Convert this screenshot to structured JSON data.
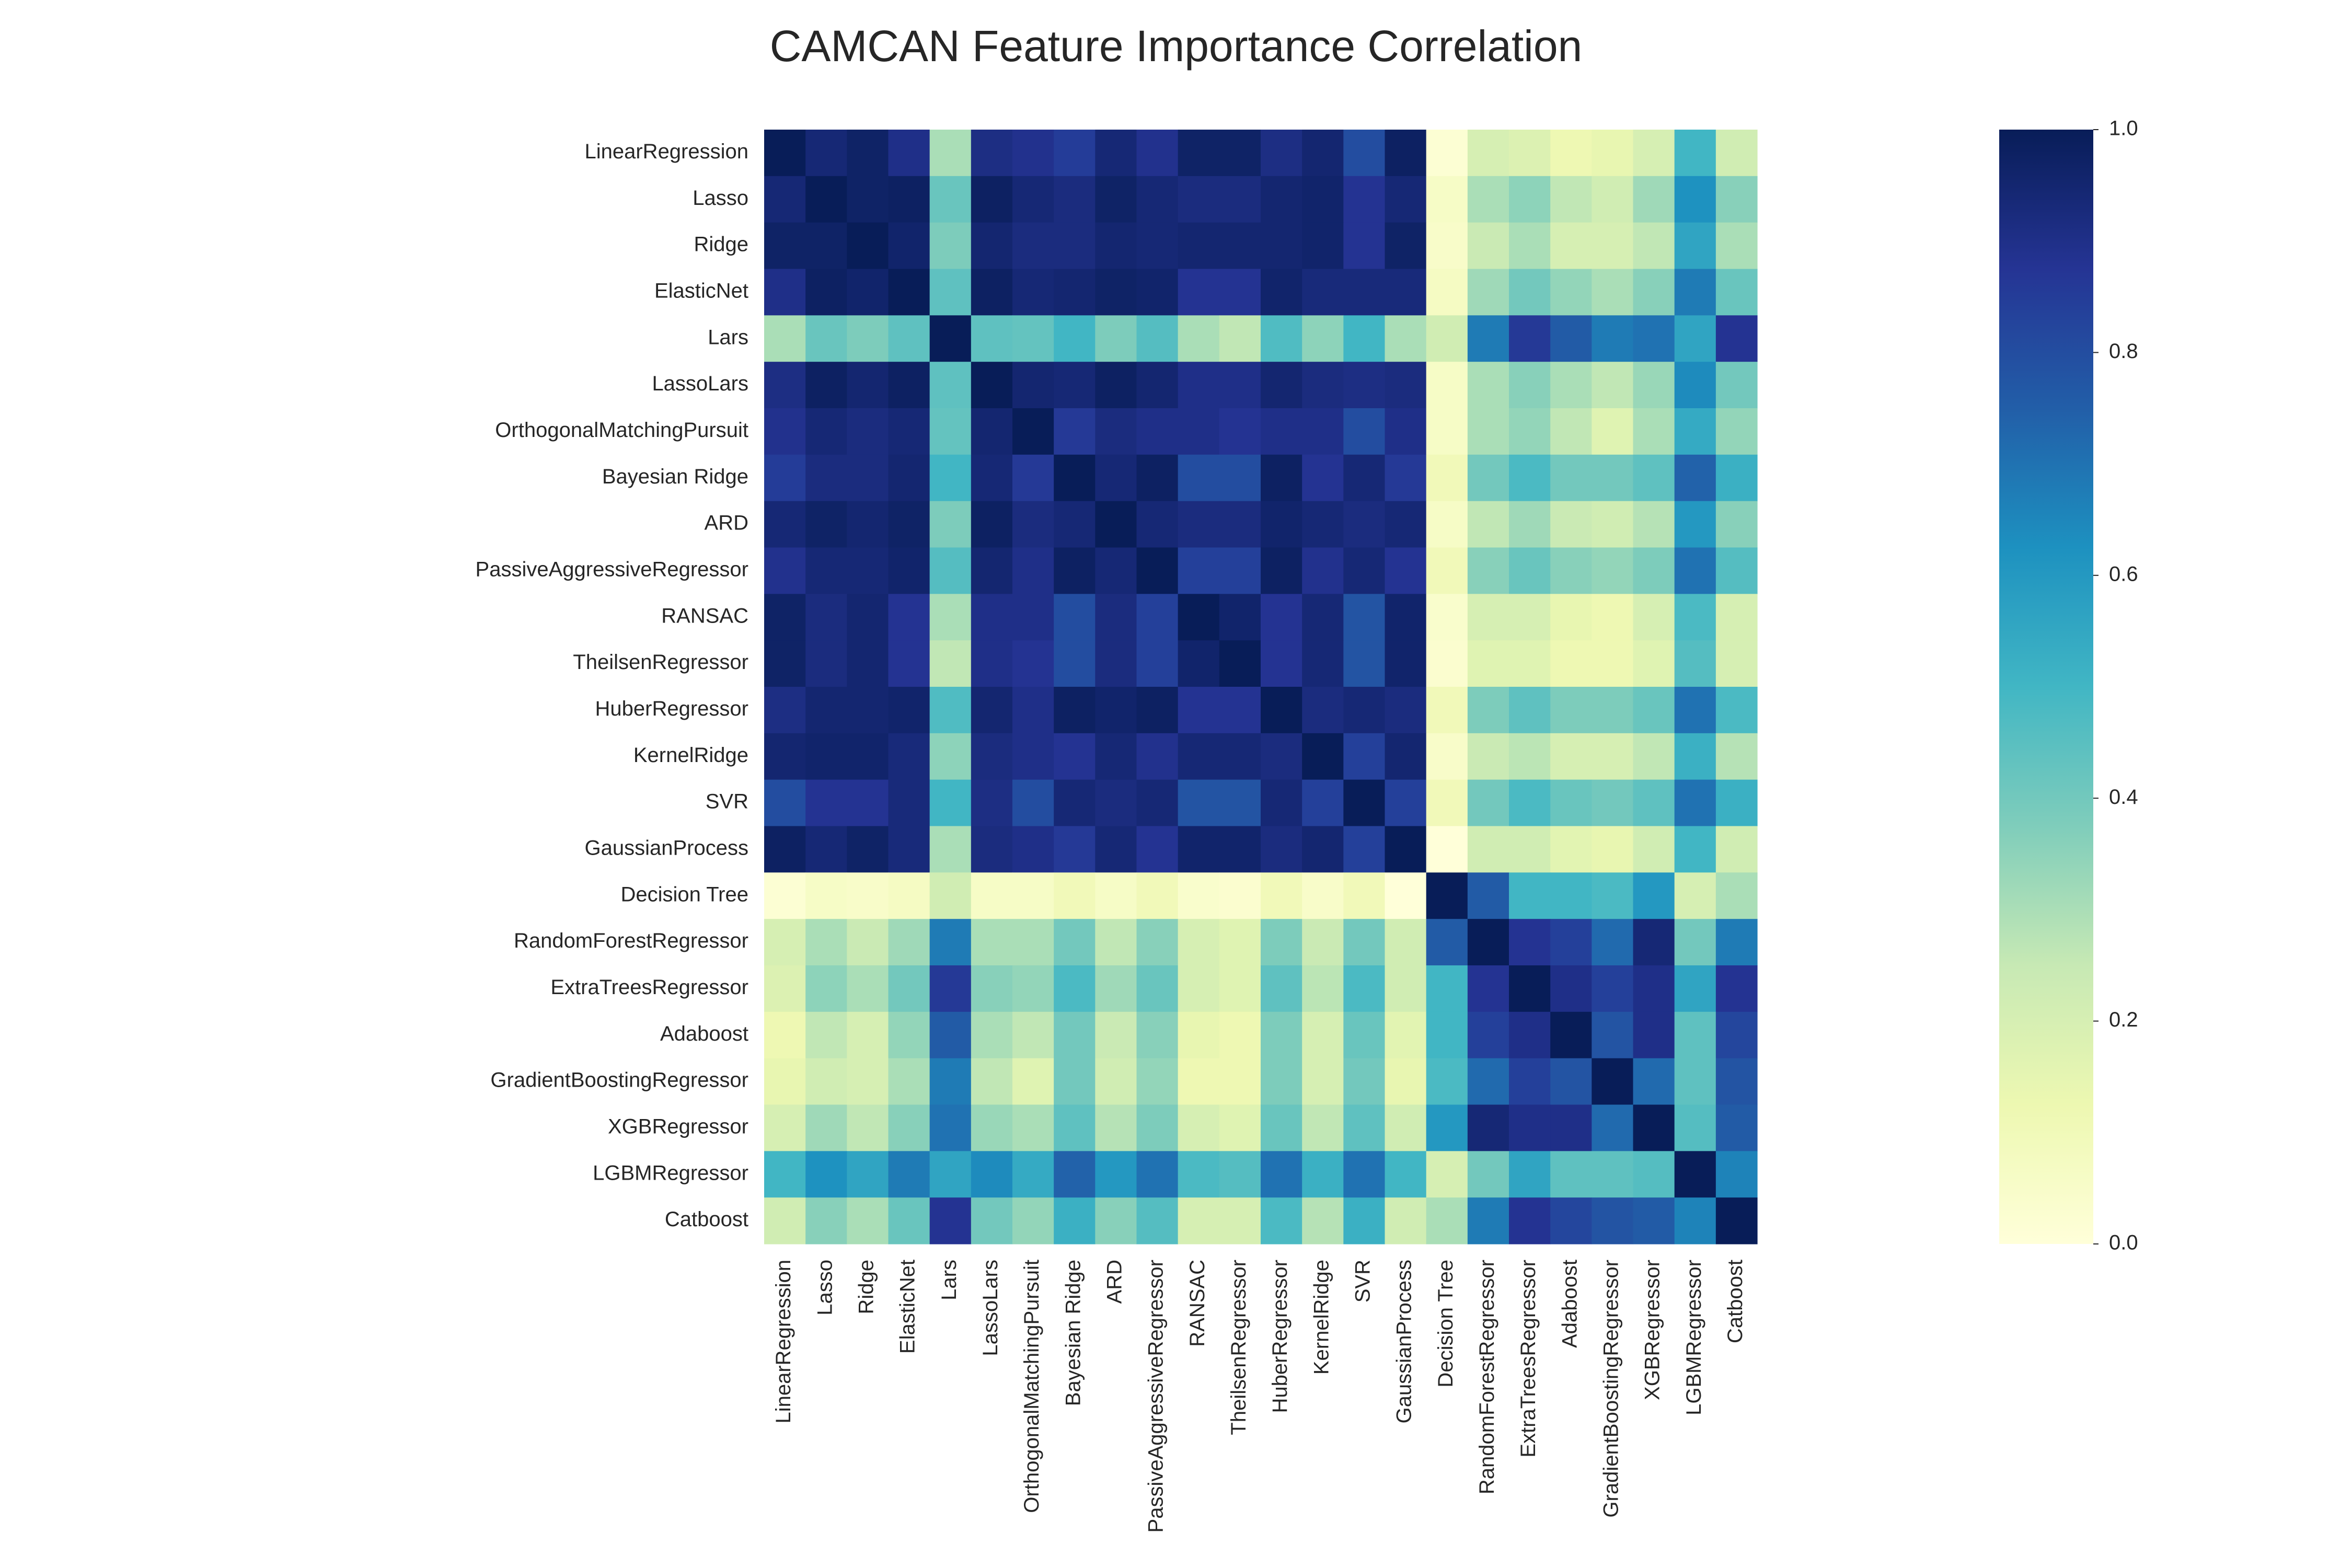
{
  "title": "CAMCAN Feature Importance Correlation",
  "colormap": {
    "name": "YlGnBu",
    "stops": [
      "#ffffd9",
      "#edf8b1",
      "#c7e9b4",
      "#7fcdbb",
      "#41b6c4",
      "#1d91c0",
      "#225ea8",
      "#253494",
      "#081d58"
    ]
  },
  "chart_data": {
    "type": "heatmap",
    "title": "CAMCAN Feature Importance Correlation",
    "labels": [
      "LinearRegression",
      "Lasso",
      "Ridge",
      "ElasticNet",
      "Lars",
      "LassoLars",
      "OrthogonalMatchingPursuit",
      "Bayesian Ridge",
      "ARD",
      "PassiveAggressiveRegressor",
      "RANSAC",
      "TheilsenRegressor",
      "HuberRegressor",
      "KernelRidge",
      "SVR",
      "GaussianProcess",
      "Decision Tree",
      "RandomForestRegressor",
      "ExtraTreesRegressor",
      "Adaboost",
      "GradientBoostingRegressor",
      "XGBRegressor",
      "LGBMRegressor",
      "Catboost"
    ],
    "vmin": 0.0,
    "vmax": 1.0,
    "colorbar_ticks": [
      "0.0",
      "0.2",
      "0.4",
      "0.6",
      "0.8",
      "1.0"
    ],
    "colorbar_tick_values": [
      0.0,
      0.2,
      0.4,
      0.6,
      0.8,
      1.0
    ],
    "values": [
      [
        1.0,
        0.94,
        0.97,
        0.9,
        0.3,
        0.91,
        0.89,
        0.85,
        0.94,
        0.89,
        0.97,
        0.97,
        0.91,
        0.95,
        0.8,
        0.98,
        0.02,
        0.2,
        0.18,
        0.12,
        0.14,
        0.2,
        0.5,
        0.22
      ],
      [
        0.94,
        1.0,
        0.97,
        0.98,
        0.42,
        0.98,
        0.94,
        0.92,
        0.97,
        0.94,
        0.92,
        0.92,
        0.95,
        0.96,
        0.88,
        0.94,
        0.06,
        0.3,
        0.35,
        0.26,
        0.22,
        0.32,
        0.62,
        0.36
      ],
      [
        0.97,
        0.97,
        1.0,
        0.96,
        0.38,
        0.95,
        0.92,
        0.92,
        0.95,
        0.94,
        0.95,
        0.95,
        0.95,
        0.96,
        0.88,
        0.97,
        0.05,
        0.24,
        0.3,
        0.2,
        0.2,
        0.26,
        0.56,
        0.3
      ],
      [
        0.9,
        0.98,
        0.96,
        1.0,
        0.44,
        0.98,
        0.94,
        0.95,
        0.97,
        0.96,
        0.88,
        0.88,
        0.96,
        0.93,
        0.93,
        0.93,
        0.07,
        0.32,
        0.4,
        0.34,
        0.3,
        0.36,
        0.68,
        0.42
      ],
      [
        0.3,
        0.42,
        0.38,
        0.44,
        1.0,
        0.44,
        0.43,
        0.5,
        0.38,
        0.46,
        0.3,
        0.26,
        0.47,
        0.35,
        0.5,
        0.3,
        0.22,
        0.68,
        0.86,
        0.76,
        0.68,
        0.7,
        0.56,
        0.88
      ],
      [
        0.91,
        0.98,
        0.95,
        0.98,
        0.44,
        1.0,
        0.95,
        0.94,
        0.98,
        0.95,
        0.9,
        0.9,
        0.95,
        0.92,
        0.91,
        0.92,
        0.06,
        0.3,
        0.36,
        0.3,
        0.26,
        0.33,
        0.64,
        0.4
      ],
      [
        0.89,
        0.94,
        0.92,
        0.94,
        0.43,
        0.95,
        1.0,
        0.86,
        0.92,
        0.9,
        0.9,
        0.88,
        0.9,
        0.9,
        0.8,
        0.9,
        0.06,
        0.3,
        0.34,
        0.26,
        0.17,
        0.3,
        0.54,
        0.34
      ],
      [
        0.85,
        0.92,
        0.92,
        0.95,
        0.5,
        0.94,
        0.86,
        1.0,
        0.94,
        0.98,
        0.8,
        0.8,
        0.98,
        0.88,
        0.94,
        0.86,
        0.1,
        0.4,
        0.48,
        0.4,
        0.4,
        0.44,
        0.74,
        0.52
      ],
      [
        0.94,
        0.97,
        0.95,
        0.97,
        0.38,
        0.98,
        0.92,
        0.94,
        1.0,
        0.94,
        0.92,
        0.92,
        0.96,
        0.94,
        0.92,
        0.94,
        0.06,
        0.26,
        0.32,
        0.24,
        0.22,
        0.28,
        0.6,
        0.36
      ],
      [
        0.89,
        0.94,
        0.94,
        0.96,
        0.46,
        0.95,
        0.9,
        0.98,
        0.94,
        1.0,
        0.84,
        0.84,
        0.98,
        0.89,
        0.94,
        0.88,
        0.1,
        0.36,
        0.42,
        0.36,
        0.34,
        0.38,
        0.7,
        0.46
      ],
      [
        0.97,
        0.92,
        0.95,
        0.88,
        0.3,
        0.9,
        0.9,
        0.8,
        0.92,
        0.84,
        1.0,
        0.96,
        0.88,
        0.94,
        0.78,
        0.96,
        0.04,
        0.2,
        0.2,
        0.14,
        0.12,
        0.2,
        0.48,
        0.2
      ],
      [
        0.97,
        0.92,
        0.95,
        0.88,
        0.26,
        0.9,
        0.88,
        0.8,
        0.92,
        0.84,
        0.96,
        1.0,
        0.88,
        0.94,
        0.78,
        0.96,
        0.03,
        0.17,
        0.17,
        0.12,
        0.12,
        0.17,
        0.46,
        0.2
      ],
      [
        0.91,
        0.95,
        0.95,
        0.96,
        0.47,
        0.95,
        0.9,
        0.98,
        0.96,
        0.98,
        0.88,
        0.88,
        1.0,
        0.92,
        0.94,
        0.92,
        0.1,
        0.38,
        0.44,
        0.38,
        0.38,
        0.42,
        0.7,
        0.48
      ],
      [
        0.95,
        0.96,
        0.96,
        0.93,
        0.35,
        0.92,
        0.9,
        0.88,
        0.94,
        0.89,
        0.94,
        0.94,
        0.92,
        1.0,
        0.84,
        0.95,
        0.05,
        0.24,
        0.27,
        0.2,
        0.2,
        0.26,
        0.52,
        0.28
      ],
      [
        0.8,
        0.88,
        0.88,
        0.93,
        0.5,
        0.91,
        0.8,
        0.94,
        0.92,
        0.94,
        0.78,
        0.78,
        0.94,
        0.84,
        1.0,
        0.84,
        0.1,
        0.4,
        0.48,
        0.42,
        0.4,
        0.44,
        0.7,
        0.52
      ],
      [
        0.98,
        0.94,
        0.97,
        0.93,
        0.3,
        0.92,
        0.9,
        0.86,
        0.94,
        0.88,
        0.96,
        0.96,
        0.92,
        0.95,
        0.84,
        1.0,
        0.0,
        0.22,
        0.22,
        0.16,
        0.14,
        0.22,
        0.5,
        0.22
      ],
      [
        0.02,
        0.06,
        0.05,
        0.07,
        0.22,
        0.06,
        0.06,
        0.1,
        0.06,
        0.1,
        0.04,
        0.03,
        0.1,
        0.05,
        0.1,
        0.0,
        1.0,
        0.76,
        0.5,
        0.5,
        0.48,
        0.6,
        0.2,
        0.3
      ],
      [
        0.2,
        0.3,
        0.24,
        0.32,
        0.68,
        0.3,
        0.3,
        0.4,
        0.26,
        0.36,
        0.2,
        0.17,
        0.38,
        0.24,
        0.4,
        0.22,
        0.76,
        1.0,
        0.88,
        0.84,
        0.72,
        0.94,
        0.4,
        0.68
      ],
      [
        0.18,
        0.35,
        0.3,
        0.4,
        0.86,
        0.36,
        0.34,
        0.48,
        0.32,
        0.42,
        0.2,
        0.17,
        0.44,
        0.27,
        0.48,
        0.22,
        0.5,
        0.88,
        1.0,
        0.9,
        0.84,
        0.9,
        0.56,
        0.88
      ],
      [
        0.12,
        0.26,
        0.2,
        0.34,
        0.76,
        0.3,
        0.26,
        0.4,
        0.24,
        0.36,
        0.14,
        0.12,
        0.38,
        0.2,
        0.42,
        0.16,
        0.5,
        0.84,
        0.9,
        1.0,
        0.78,
        0.9,
        0.44,
        0.82
      ],
      [
        0.14,
        0.22,
        0.2,
        0.3,
        0.68,
        0.26,
        0.17,
        0.4,
        0.22,
        0.34,
        0.12,
        0.12,
        0.38,
        0.2,
        0.4,
        0.14,
        0.48,
        0.72,
        0.84,
        0.78,
        1.0,
        0.72,
        0.44,
        0.78
      ],
      [
        0.2,
        0.32,
        0.26,
        0.36,
        0.7,
        0.33,
        0.3,
        0.44,
        0.28,
        0.38,
        0.2,
        0.17,
        0.42,
        0.26,
        0.44,
        0.22,
        0.6,
        0.94,
        0.9,
        0.9,
        0.72,
        1.0,
        0.46,
        0.76
      ],
      [
        0.5,
        0.62,
        0.56,
        0.68,
        0.56,
        0.64,
        0.54,
        0.74,
        0.6,
        0.7,
        0.48,
        0.46,
        0.7,
        0.52,
        0.7,
        0.5,
        0.2,
        0.4,
        0.56,
        0.44,
        0.44,
        0.46,
        1.0,
        0.66
      ],
      [
        0.22,
        0.36,
        0.3,
        0.42,
        0.88,
        0.4,
        0.34,
        0.52,
        0.36,
        0.46,
        0.2,
        0.2,
        0.48,
        0.28,
        0.52,
        0.22,
        0.3,
        0.68,
        0.88,
        0.82,
        0.78,
        0.76,
        0.66,
        1.0
      ]
    ]
  }
}
